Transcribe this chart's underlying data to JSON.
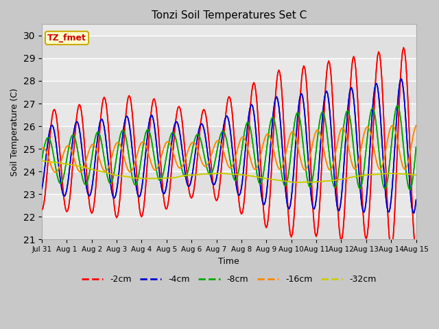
{
  "title": "Tonzi Soil Temperatures Set C",
  "xlabel": "Time",
  "ylabel": "Soil Temperature (C)",
  "ylim": [
    21.0,
    30.5
  ],
  "yticks": [
    21.0,
    22.0,
    23.0,
    24.0,
    25.0,
    26.0,
    27.0,
    28.0,
    29.0,
    30.0
  ],
  "fig_color": "#c8c8c8",
  "plot_bg": "#e8e8e8",
  "annotation_label": "TZ_fmet",
  "annotation_color": "#cc0000",
  "annotation_bg": "#ffffcc",
  "annotation_border": "#ccaa00",
  "colors": {
    "-2cm": "#ff0000",
    "-4cm": "#0000cc",
    "-8cm": "#00aa00",
    "-16cm": "#ff8800",
    "-32cm": "#cccc00"
  },
  "linewidth": 1.2,
  "xtick_labels": [
    "Jul 31",
    "Aug 1",
    "Aug 2",
    "Aug 3",
    "Aug 4",
    "Aug 5",
    "Aug 6",
    "Aug 7",
    "Aug 8",
    "Aug 9",
    "Aug 10",
    "Aug 11",
    "Aug 12",
    "Aug 13",
    "Aug 14",
    "Aug 15"
  ],
  "xtick_positions": [
    0,
    1,
    2,
    3,
    4,
    5,
    6,
    7,
    8,
    9,
    10,
    11,
    12,
    13,
    14,
    15
  ]
}
